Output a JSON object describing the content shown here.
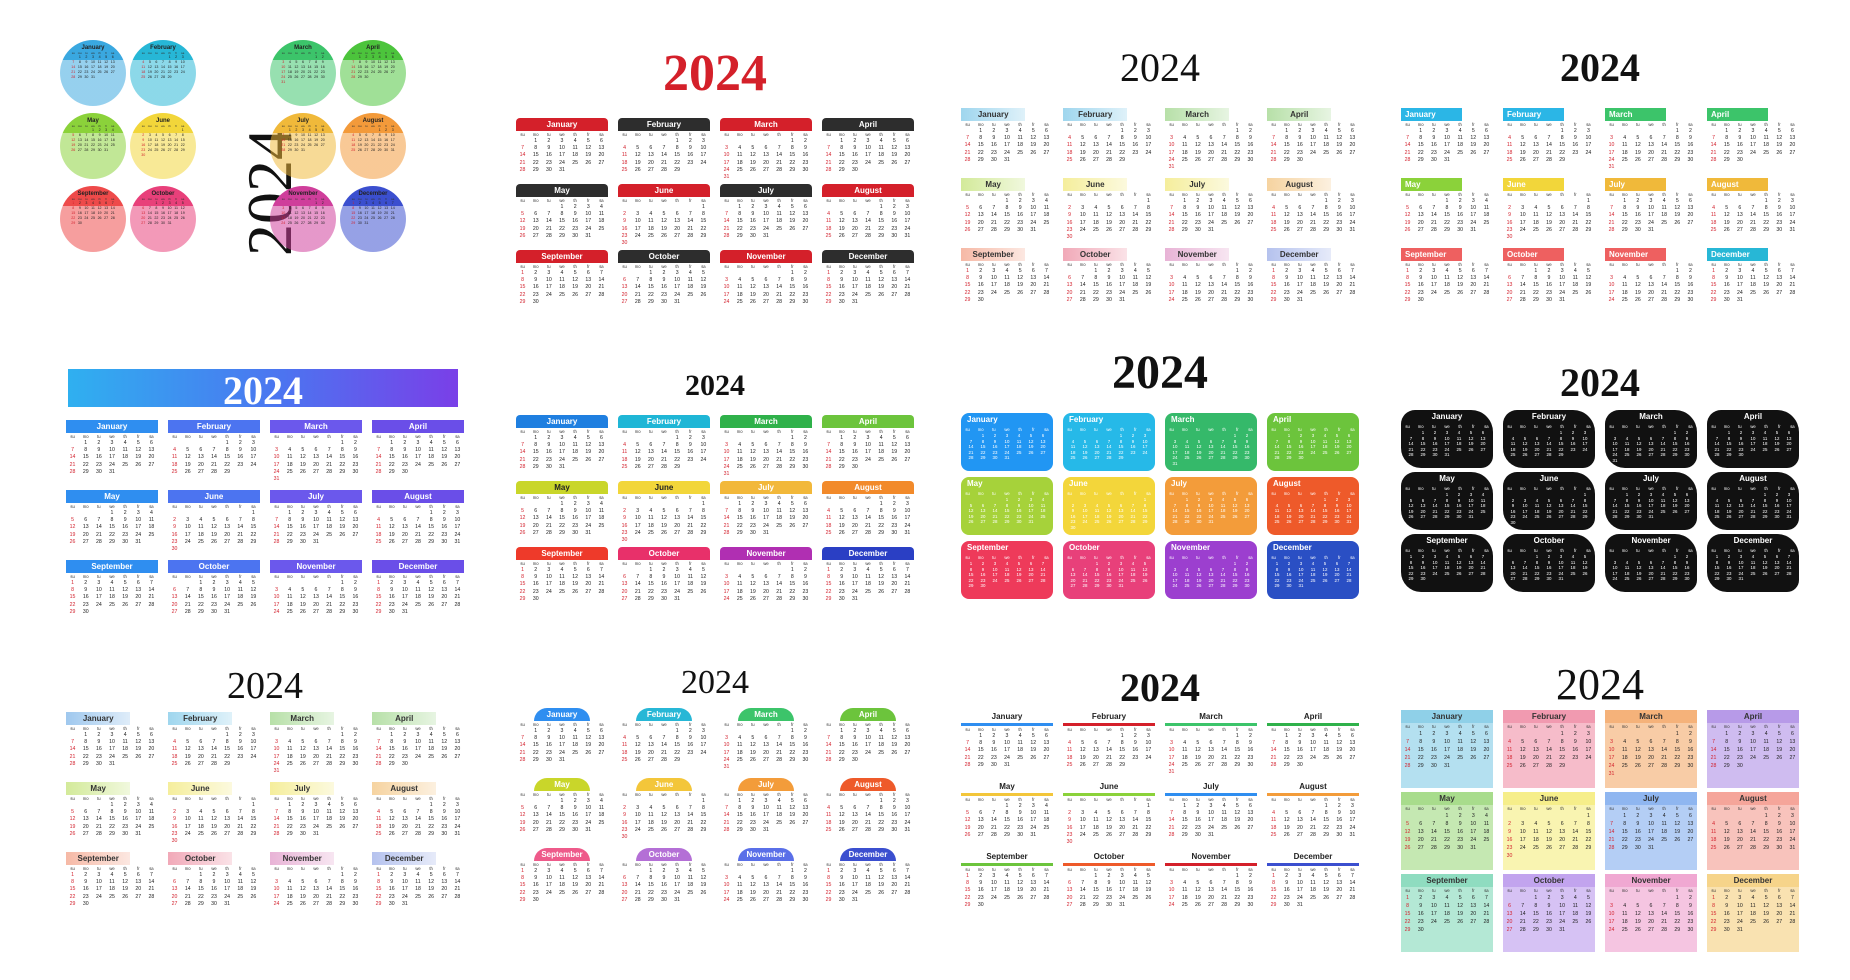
{
  "year_label": "2024",
  "months": [
    "January",
    "February",
    "March",
    "April",
    "May",
    "June",
    "July",
    "August",
    "September",
    "October",
    "November",
    "December"
  ],
  "weekdays": [
    "su",
    "mo",
    "tu",
    "we",
    "th",
    "fr",
    "sa"
  ],
  "calendars": [
    {
      "style": "circles",
      "colors": [
        "#3aa8e0",
        "#27b7d6",
        "#3cc46a",
        "#4cc43c",
        "#8bd23a",
        "#f2d63a",
        "#f0b93a",
        "#f39a3a",
        "#ee4a4a",
        "#e8407a",
        "#cf3e9b",
        "#3b4fcf"
      ]
    },
    {
      "style": "bars",
      "colors": [
        "#d4202a",
        "#2d2d2d",
        "#d4202a",
        "#2d2d2d",
        "#2d2d2d",
        "#d4202a",
        "#2d2d2d",
        "#d4202a",
        "#d4202a",
        "#2d2d2d",
        "#d4202a",
        "#2d2d2d"
      ]
    },
    {
      "style": "brush",
      "colors": [
        "#9fd6ee",
        "#9fd6ee",
        "#b7e0a8",
        "#b7e0a8",
        "#d3ea9a",
        "#f5ee9c",
        "#f5ee9c",
        "#f6d3a0",
        "#f6b9a6",
        "#f1a9b8",
        "#e8b3d6",
        "#b5c2ee"
      ]
    },
    {
      "style": "tabs",
      "colors": [
        "#2bb6e6",
        "#2bb6e6",
        "#3cc46a",
        "#3cc46a",
        "#8bd23a",
        "#f2d63a",
        "#f0b93a",
        "#f0b93a",
        "#ee6060",
        "#ee6060",
        "#ee6060",
        "#27b7d6"
      ]
    },
    {
      "style": "banner",
      "colors": [
        "#2f8ef0",
        "#4c74f0",
        "#6b58ec",
        "#6a4ee8",
        "#2f8ef0",
        "#4c74f0",
        "#6b58ec",
        "#6a4ee8",
        "#2f8ef0",
        "#4c74f0",
        "#6b58ec",
        "#6a4ee8"
      ]
    },
    {
      "style": "bars",
      "colors": [
        "#1f7fe0",
        "#1fb6d6",
        "#2fb14a",
        "#6cc43c",
        "#c9d62a",
        "#f2d63a",
        "#f2b83a",
        "#f28a2a",
        "#ee3a2a",
        "#e8306a",
        "#b02fb2",
        "#2a3fc4"
      ]
    },
    {
      "style": "cards",
      "colors": [
        "#2196f3",
        "#26b9e8",
        "#35b96a",
        "#6cc43c",
        "#a6d23a",
        "#f3d63a",
        "#f39c3a",
        "#ee5a2a",
        "#ee3a5a",
        "#e8407a",
        "#9c3fcf",
        "#2a4fc4"
      ]
    },
    {
      "style": "black",
      "colors": [
        "#111111",
        "#111111",
        "#111111",
        "#111111",
        "#111111",
        "#111111",
        "#111111",
        "#111111",
        "#111111",
        "#111111",
        "#111111",
        "#111111"
      ]
    },
    {
      "style": "brush",
      "colors": [
        "#9fc8ee",
        "#9fd6ee",
        "#b7e0a8",
        "#b7e0a8",
        "#d3ea9a",
        "#f5ee9c",
        "#f5ee9c",
        "#f6d3a0",
        "#f6b9a6",
        "#f1a9b8",
        "#e8b3d6",
        "#b5c2ee"
      ]
    },
    {
      "style": "dome",
      "colors": [
        "#2f8ef0",
        "#27b7d6",
        "#3cc46a",
        "#6cc43c",
        "#c9d62a",
        "#f3c63a",
        "#f39c3a",
        "#ee5a2a",
        "#ee5a8a",
        "#b46fd6",
        "#5a6fe8",
        "#3b4fcf"
      ]
    },
    {
      "style": "stripe",
      "colors": [
        "#2f8ef0",
        "#d4202a",
        "#3cc46a",
        "#2fb14a",
        "#f3c63a",
        "#8bd23a",
        "#2f8ef0",
        "#f39c3a",
        "#6cc43c",
        "#ee5a2a",
        "#d4202a",
        "#3b4fcf"
      ]
    },
    {
      "style": "pastel",
      "colors": [
        "#8fd0e8",
        "#f19ab0",
        "#f5b27a",
        "#b79ae8",
        "#a8dc8c",
        "#f6ee8a",
        "#8fb6f0",
        "#f5a59a",
        "#8fdcc0",
        "#c2a4ee",
        "#f0a8d2",
        "#f6d48a"
      ]
    }
  ]
}
